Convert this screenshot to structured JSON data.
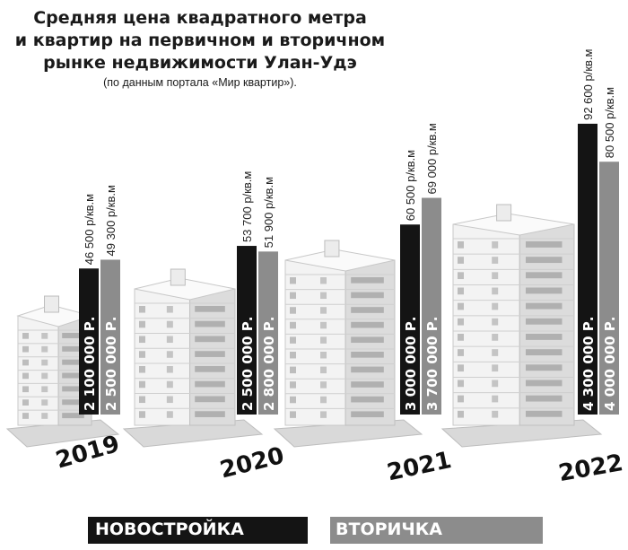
{
  "title_lines": [
    "Средняя цена квадратного метра",
    "и квартир на первичном и вторичном",
    "рынке недвижимости Улан-Удэ"
  ],
  "subtitle": "(по данным портала «Мир квартир»).",
  "legend": {
    "new": "НОВОСТРОЙКА",
    "secondary": "ВТОРИЧКА"
  },
  "colors": {
    "new": "#141414",
    "secondary": "#8c8c8c",
    "text_dark": "#111111"
  },
  "chart_data": {
    "type": "bar",
    "title": "Средняя цена квадратного метра и квартир на первичном и вторичном рынке недвижимости Улан-Удэ",
    "subtitle": "(по данным портала «Мир квартир»).",
    "categories": [
      "2019",
      "2020",
      "2021",
      "2022"
    ],
    "series": [
      {
        "name": "НОВОСТРОЙКА",
        "values": [
          46500,
          53700,
          60500,
          92600
        ],
        "value_labels": [
          "46 500 р/кв.м",
          "53 700 р/кв.м",
          "60 500 р/кв.м",
          "92 600 р/кв.м"
        ],
        "apartment_labels": [
          "2 100 000 Р.",
          "2 500 000 Р.",
          "3 000 000 Р.",
          "4 300 000 Р."
        ],
        "apartment_values": [
          2100000,
          2500000,
          3000000,
          4300000
        ]
      },
      {
        "name": "ВТОРИЧКА",
        "values": [
          49300,
          51900,
          69000,
          80500
        ],
        "value_labels": [
          "49 300 р/кв.м",
          "51 900 р/кв.м",
          "69 000 р/кв.м",
          "80 500 р/кв.м"
        ],
        "apartment_labels": [
          "2 500 000 Р.",
          "2 800 000 Р.",
          "3 700 000 Р.",
          "4 000 000 Р."
        ],
        "apartment_values": [
          2500000,
          2800000,
          3700000,
          4000000
        ]
      }
    ],
    "legend_position": "bottom",
    "grid": false
  }
}
